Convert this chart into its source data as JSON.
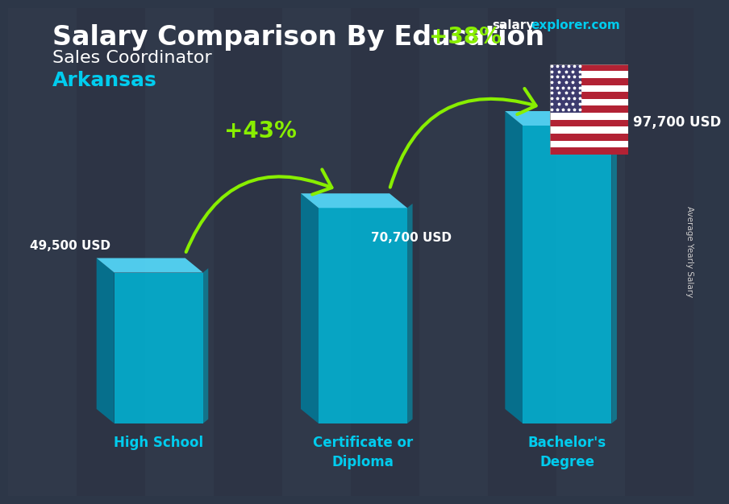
{
  "title_main": "Salary Comparison By Education",
  "subtitle1": "Sales Coordinator",
  "subtitle2": "Arkansas",
  "ylabel": "Average Yearly Salary",
  "website_salary": "salary",
  "website_explorer": "explorer.com",
  "categories": [
    "High School",
    "Certificate or\nDiploma",
    "Bachelor's\nDegree"
  ],
  "values": [
    49500,
    70700,
    97700
  ],
  "value_labels": [
    "49,500 USD",
    "70,700 USD",
    "97,700 USD"
  ],
  "pct_labels": [
    "+43%",
    "+38%"
  ],
  "pct_color": "#aaff00",
  "bg_dark": "#2d3748",
  "title_color": "#ffffff",
  "subtitle1_color": "#ffffff",
  "subtitle2_color": "#00ccee",
  "value_label_color": "#ffffff",
  "category_label_color": "#00ccee",
  "arrow_color": "#88ee00",
  "bar_front": "#00b8d9",
  "bar_left": "#007a99",
  "bar_top": "#55ddff",
  "bar_right": "#009ab5",
  "website_color": "#ffffff",
  "website_cyan": "#00ccee",
  "side_label_color": "#cccccc"
}
